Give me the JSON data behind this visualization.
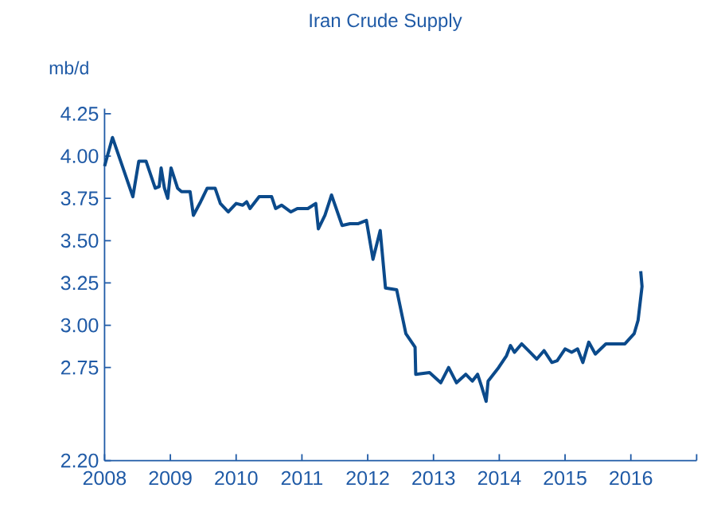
{
  "chart_data": {
    "type": "line",
    "title": "Iran Crude Supply",
    "ylabel": "mb/d",
    "x": [
      2008.0,
      2008.12,
      2008.43,
      2008.52,
      2008.63,
      2008.77,
      2008.83,
      2008.86,
      2008.91,
      2008.96,
      2009.01,
      2009.11,
      2009.17,
      2009.3,
      2009.35,
      2009.46,
      2009.56,
      2009.68,
      2009.76,
      2009.88,
      2010.0,
      2010.1,
      2010.16,
      2010.21,
      2010.35,
      2010.54,
      2010.6,
      2010.69,
      2010.83,
      2010.93,
      2011.09,
      2011.21,
      2011.25,
      2011.35,
      2011.45,
      2011.61,
      2011.73,
      2011.85,
      2011.98,
      2012.08,
      2012.19,
      2012.27,
      2012.44,
      2012.58,
      2012.72,
      2012.73,
      2012.94,
      2013.11,
      2013.23,
      2013.35,
      2013.49,
      2013.59,
      2013.67,
      2013.73,
      2013.8,
      2013.83,
      2013.99,
      2014.11,
      2014.17,
      2014.23,
      2014.34,
      2014.47,
      2014.57,
      2014.68,
      2014.8,
      2014.88,
      2015.0,
      2015.1,
      2015.19,
      2015.27,
      2015.36,
      2015.46,
      2015.62,
      2015.91,
      2016.05,
      2016.11,
      2016.17,
      2016.15
    ],
    "series": [
      {
        "color": "#0b4a8b",
        "values": [
          3.94,
          4.11,
          3.76,
          3.97,
          3.97,
          3.81,
          3.82,
          3.93,
          3.81,
          3.75,
          3.93,
          3.81,
          3.79,
          3.79,
          3.65,
          3.73,
          3.81,
          3.81,
          3.72,
          3.67,
          3.72,
          3.71,
          3.73,
          3.69,
          3.76,
          3.76,
          3.69,
          3.71,
          3.67,
          3.69,
          3.69,
          3.72,
          3.57,
          3.65,
          3.77,
          3.59,
          3.6,
          3.6,
          3.62,
          3.39,
          3.56,
          3.22,
          3.21,
          2.95,
          2.87,
          2.71,
          2.72,
          2.66,
          2.75,
          2.66,
          2.71,
          2.67,
          2.71,
          2.64,
          2.55,
          2.67,
          2.75,
          2.82,
          2.88,
          2.84,
          2.89,
          2.84,
          2.8,
          2.85,
          2.78,
          2.79,
          2.86,
          2.84,
          2.86,
          2.78,
          2.9,
          2.83,
          2.89,
          2.89,
          2.95,
          3.03,
          3.23,
          3.32
        ]
      }
    ],
    "xlim": [
      2008,
      2017
    ],
    "xticks": [
      2008,
      2009,
      2010,
      2011,
      2012,
      2013,
      2014,
      2015,
      2016,
      {
        "value": 2017,
        "label": null
      }
    ],
    "ylim": [
      2.2,
      4.28
    ],
    "yticks": [
      {
        "value": 2.2,
        "label": "2.20"
      },
      {
        "value": 2.75,
        "label": "2.75"
      },
      {
        "value": 3.0,
        "label": "3.00"
      },
      {
        "value": 3.25,
        "label": "3.25"
      },
      {
        "value": 3.5,
        "label": "3.50"
      },
      {
        "value": 3.75,
        "label": "3.75"
      },
      {
        "value": 4.0,
        "label": "4.00"
      },
      {
        "value": 4.25,
        "label": "4.25"
      }
    ],
    "grid": false,
    "marker": "none",
    "line_style": "solid"
  }
}
